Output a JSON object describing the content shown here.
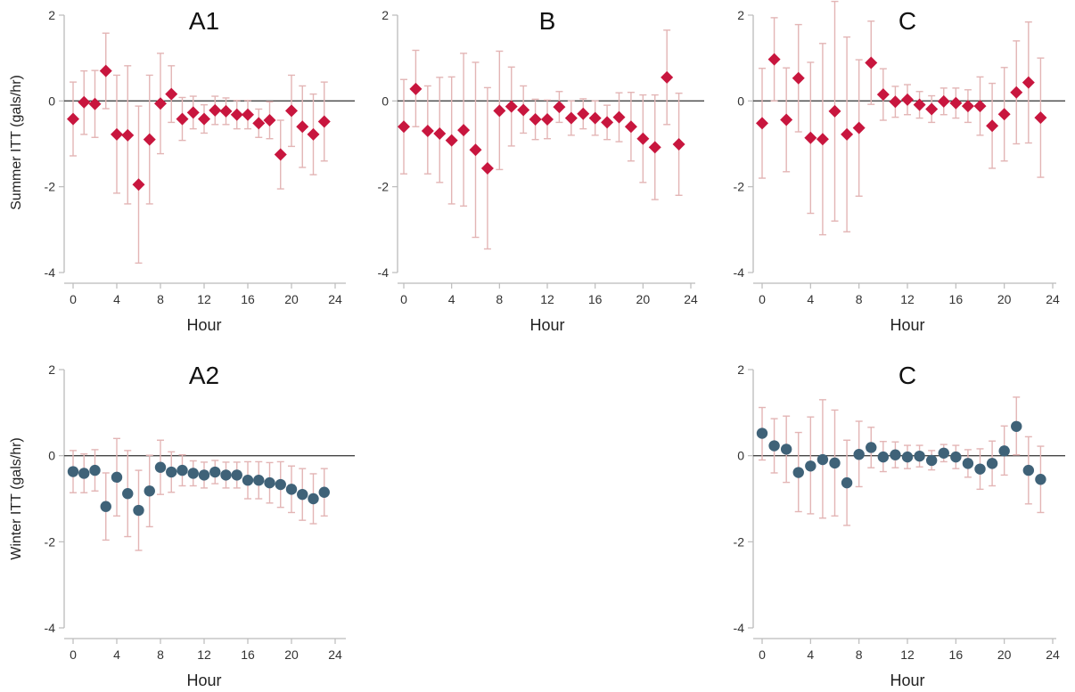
{
  "row_labels": [
    "Summer ITT (gals/hr)",
    "Winter ITT (gals/hr)"
  ],
  "colors": {
    "errorbar": "#e3b5b5",
    "summer": "#c8163e",
    "winter": "#3f6278",
    "axis": "#bbbbbb",
    "zeroline": "#444444"
  },
  "chart_data": [
    {
      "type": "scatter",
      "marker": "diamond",
      "title": "A1",
      "xlabel": "Hour",
      "ylabel": "Summer ITT (gals/hr)",
      "xlim": [
        -0.5,
        25
      ],
      "ylim": [
        -4.2,
        2.1
      ],
      "xticks": [
        0,
        4,
        8,
        12,
        16,
        20,
        24
      ],
      "yticks": [
        2,
        0,
        -2,
        -4
      ],
      "x": [
        0,
        1,
        2,
        3,
        4,
        5,
        6,
        7,
        8,
        9,
        10,
        11,
        12,
        13,
        14,
        15,
        16,
        17,
        18,
        19,
        20,
        21,
        22,
        23
      ],
      "y": [
        -0.42,
        -0.03,
        -0.07,
        0.7,
        -0.78,
        -0.8,
        -1.95,
        -0.9,
        -0.06,
        0.16,
        -0.42,
        -0.27,
        -0.42,
        -0.22,
        -0.24,
        -0.32,
        -0.32,
        -0.52,
        -0.45,
        -1.25,
        -0.23,
        -0.6,
        -0.78,
        -0.48
      ],
      "lower": [
        -1.28,
        -0.78,
        -0.85,
        -0.18,
        -2.15,
        -2.4,
        -3.78,
        -2.4,
        -1.23,
        -0.5,
        -0.92,
        -0.65,
        -0.75,
        -0.55,
        -0.55,
        -0.65,
        -0.65,
        -0.85,
        -0.88,
        -2.05,
        -1.06,
        -1.55,
        -1.72,
        -1.4
      ],
      "upper": [
        0.44,
        0.7,
        0.71,
        1.58,
        0.6,
        0.82,
        -0.12,
        0.6,
        1.11,
        0.82,
        0.08,
        0.11,
        -0.09,
        0.11,
        0.07,
        0.01,
        0.01,
        -0.19,
        -0.02,
        -0.45,
        0.6,
        0.35,
        0.16,
        0.44
      ]
    },
    {
      "type": "scatter",
      "marker": "diamond",
      "title": "B",
      "xlabel": "Hour",
      "ylabel": "",
      "xlim": [
        -0.5,
        25
      ],
      "ylim": [
        -4.2,
        2.1
      ],
      "xticks": [
        0,
        4,
        8,
        12,
        16,
        20,
        24
      ],
      "yticks": [
        2,
        0,
        -2,
        -4
      ],
      "x": [
        0,
        1,
        2,
        3,
        4,
        5,
        6,
        7,
        8,
        9,
        10,
        11,
        12,
        13,
        14,
        15,
        16,
        17,
        18,
        19,
        20,
        21,
        22,
        23
      ],
      "y": [
        -0.6,
        0.28,
        -0.7,
        -0.76,
        -0.92,
        -0.68,
        -1.14,
        -1.57,
        -0.23,
        -0.13,
        -0.21,
        -0.43,
        -0.43,
        -0.14,
        -0.4,
        -0.3,
        -0.4,
        -0.5,
        -0.38,
        -0.6,
        -0.88,
        -1.08,
        0.55,
        -1.01
      ],
      "lower": [
        -1.7,
        -0.6,
        -1.7,
        -1.9,
        -2.4,
        -2.45,
        -3.18,
        -3.45,
        -1.6,
        -1.05,
        -0.75,
        -0.9,
        -0.88,
        -0.5,
        -0.8,
        -0.65,
        -0.8,
        -0.9,
        -0.95,
        -1.4,
        -1.9,
        -2.3,
        -0.55,
        -2.2
      ],
      "upper": [
        0.5,
        1.18,
        0.35,
        0.55,
        0.56,
        1.11,
        0.9,
        0.31,
        1.16,
        0.79,
        0.35,
        0.04,
        0.02,
        0.22,
        0.0,
        0.05,
        0.0,
        -0.1,
        0.19,
        0.2,
        0.14,
        0.14,
        1.65,
        0.18
      ]
    },
    {
      "type": "scatter",
      "marker": "diamond",
      "title": "C",
      "xlabel": "Hour",
      "ylabel": "",
      "xlim": [
        -0.5,
        25
      ],
      "ylim": [
        -4.2,
        2.1
      ],
      "xticks": [
        0,
        4,
        8,
        12,
        16,
        20,
        24
      ],
      "yticks": [
        2,
        0,
        -2,
        -4
      ],
      "x": [
        0,
        1,
        2,
        3,
        4,
        5,
        6,
        7,
        8,
        9,
        10,
        11,
        12,
        13,
        14,
        15,
        16,
        17,
        18,
        19,
        20,
        21,
        22,
        23
      ],
      "y": [
        -0.52,
        0.97,
        -0.44,
        0.53,
        -0.86,
        -0.89,
        -0.24,
        -0.78,
        -0.63,
        0.89,
        0.15,
        -0.02,
        0.03,
        -0.09,
        -0.19,
        -0.01,
        -0.05,
        -0.12,
        -0.12,
        -0.58,
        -0.31,
        0.2,
        0.43,
        -0.39
      ],
      "lower": [
        -1.8,
        0.0,
        -1.65,
        -0.72,
        -2.62,
        -3.12,
        -2.8,
        -3.05,
        -2.22,
        -0.08,
        -0.45,
        -0.38,
        -0.32,
        -0.4,
        -0.5,
        -0.32,
        -0.4,
        -0.5,
        -0.8,
        -1.57,
        -1.4,
        -1.0,
        -0.98,
        -1.78
      ],
      "upper": [
        0.76,
        1.94,
        0.77,
        1.78,
        0.9,
        1.34,
        2.32,
        1.49,
        0.96,
        1.86,
        0.75,
        0.34,
        0.38,
        0.22,
        0.12,
        0.3,
        0.3,
        0.26,
        0.56,
        0.41,
        0.78,
        1.4,
        1.84,
        1.0
      ]
    },
    {
      "type": "scatter",
      "marker": "circle",
      "title": "A2",
      "xlabel": "Hour",
      "ylabel": "Winter ITT (gals/hr)",
      "xlim": [
        -0.5,
        25
      ],
      "ylim": [
        -4.2,
        2.1
      ],
      "xticks": [
        0,
        4,
        8,
        12,
        16,
        20,
        24
      ],
      "yticks": [
        2,
        0,
        -2,
        -4
      ],
      "x": [
        0,
        1,
        2,
        3,
        4,
        5,
        6,
        7,
        8,
        9,
        10,
        11,
        12,
        13,
        14,
        15,
        16,
        17,
        18,
        19,
        20,
        21,
        22,
        23
      ],
      "y": [
        -0.37,
        -0.41,
        -0.34,
        -1.18,
        -0.5,
        -0.88,
        -1.27,
        -0.82,
        -0.27,
        -0.38,
        -0.34,
        -0.41,
        -0.45,
        -0.38,
        -0.45,
        -0.45,
        -0.57,
        -0.57,
        -0.63,
        -0.67,
        -0.78,
        -0.9,
        -1.0,
        -0.85
      ],
      "lower": [
        -0.86,
        -0.86,
        -0.82,
        -1.96,
        -1.4,
        -1.88,
        -2.2,
        -1.65,
        -0.9,
        -0.85,
        -0.7,
        -0.7,
        -0.75,
        -0.65,
        -0.75,
        -0.75,
        -1.0,
        -1.0,
        -1.1,
        -1.2,
        -1.32,
        -1.5,
        -1.58,
        -1.4
      ],
      "upper": [
        0.12,
        0.04,
        0.14,
        -0.4,
        0.4,
        0.12,
        -0.34,
        0.01,
        0.36,
        0.09,
        0.02,
        -0.12,
        -0.15,
        -0.11,
        -0.15,
        -0.15,
        -0.14,
        -0.14,
        -0.16,
        -0.14,
        -0.24,
        -0.3,
        -0.42,
        -0.3
      ]
    },
    {
      "type": "scatter",
      "marker": "circle",
      "title": "C",
      "xlabel": "Hour",
      "ylabel": "",
      "xlim": [
        -0.5,
        25
      ],
      "ylim": [
        -4.2,
        2.1
      ],
      "xticks": [
        0,
        4,
        8,
        12,
        16,
        20,
        24
      ],
      "yticks": [
        2,
        0,
        -2,
        -4
      ],
      "x": [
        0,
        1,
        2,
        3,
        4,
        5,
        6,
        7,
        8,
        9,
        10,
        11,
        12,
        13,
        14,
        15,
        16,
        17,
        18,
        19,
        20,
        21,
        22,
        23
      ],
      "y": [
        0.52,
        0.23,
        0.15,
        -0.39,
        -0.24,
        -0.09,
        -0.17,
        -0.63,
        0.03,
        0.19,
        -0.03,
        0.02,
        -0.03,
        -0.01,
        -0.11,
        0.06,
        -0.03,
        -0.18,
        -0.31,
        -0.18,
        0.11,
        0.68,
        -0.34,
        -0.55
      ],
      "lower": [
        -0.1,
        -0.4,
        -0.62,
        -1.3,
        -1.35,
        -1.45,
        -1.4,
        -1.62,
        -0.72,
        -0.28,
        -0.37,
        -0.28,
        -0.3,
        -0.26,
        -0.33,
        -0.14,
        -0.3,
        -0.5,
        -0.78,
        -0.7,
        -0.45,
        0.02,
        -1.12,
        -1.32
      ],
      "upper": [
        1.12,
        0.86,
        0.92,
        0.54,
        0.9,
        1.3,
        1.06,
        0.36,
        0.8,
        0.66,
        0.33,
        0.32,
        0.24,
        0.24,
        0.12,
        0.26,
        0.24,
        0.14,
        0.16,
        0.34,
        0.69,
        1.36,
        0.44,
        0.22
      ]
    }
  ]
}
